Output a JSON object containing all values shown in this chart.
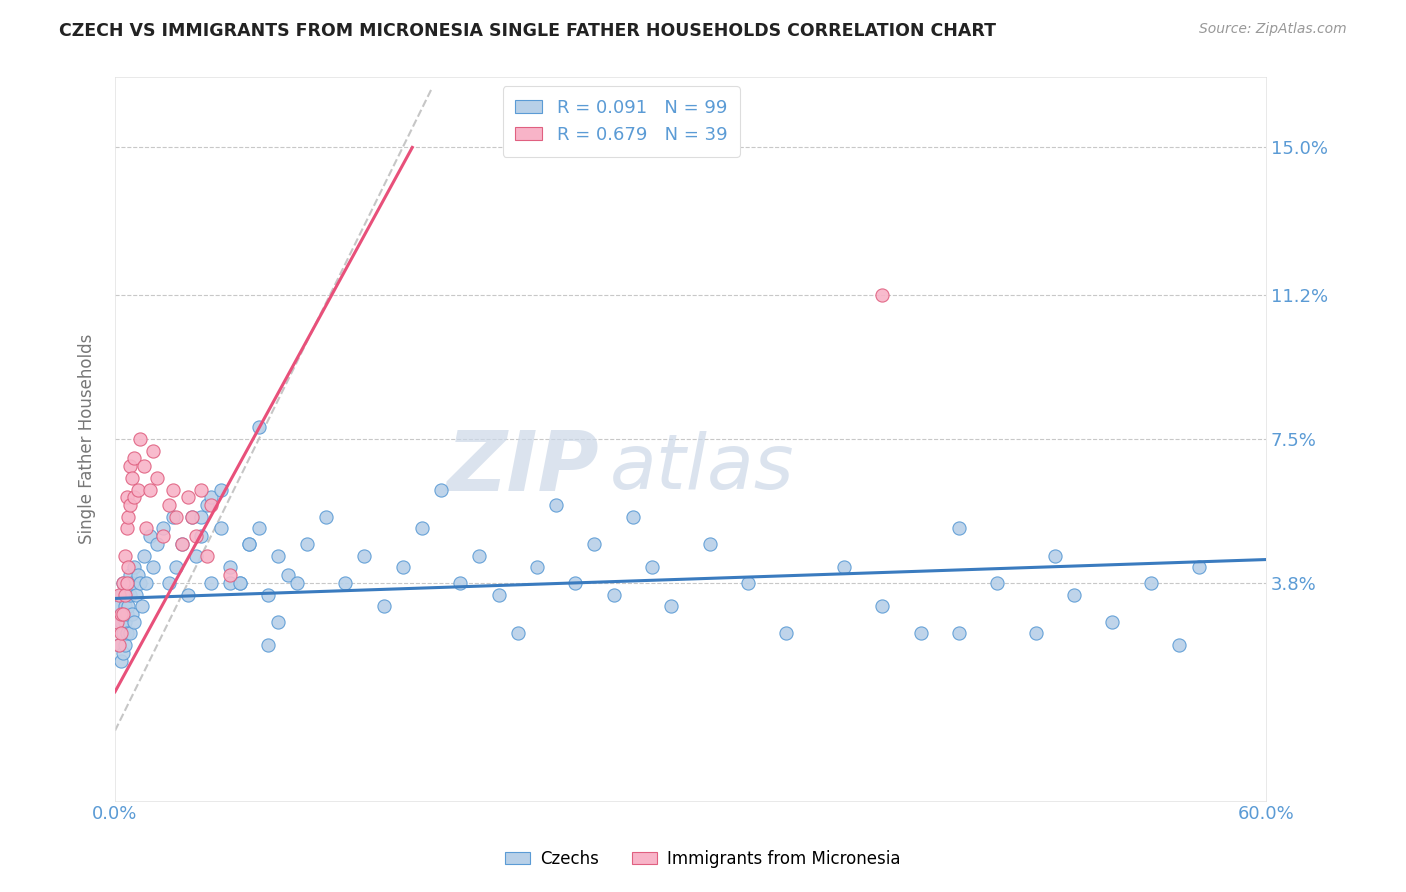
{
  "title": "CZECH VS IMMIGRANTS FROM MICRONESIA SINGLE FATHER HOUSEHOLDS CORRELATION CHART",
  "source_text": "Source: ZipAtlas.com",
  "ylabel": "Single Father Households",
  "ytick_labels": [
    "3.8%",
    "7.5%",
    "11.2%",
    "15.0%"
  ],
  "ytick_values": [
    0.038,
    0.075,
    0.112,
    0.15
  ],
  "xlim": [
    0.0,
    0.6
  ],
  "ylim": [
    -0.018,
    0.168
  ],
  "blue_R": 0.091,
  "blue_N": 99,
  "pink_R": 0.679,
  "pink_N": 39,
  "blue_color": "#b8d0e8",
  "pink_color": "#f8b4c8",
  "blue_edge_color": "#5b9bd5",
  "pink_edge_color": "#e06080",
  "blue_line_color": "#3a7bbf",
  "pink_line_color": "#e8507a",
  "ref_line_color": "#c0c0c0",
  "grid_color": "#c8c8c8",
  "label_color": "#5b9bd5",
  "title_color": "#222222",
  "source_color": "#999999",
  "watermark_color": "#ccd8e8",
  "legend_label1": "Czechs",
  "legend_label2": "Immigrants from Micronesia",
  "blue_x": [
    0.001,
    0.002,
    0.002,
    0.003,
    0.003,
    0.003,
    0.004,
    0.004,
    0.004,
    0.004,
    0.005,
    0.005,
    0.005,
    0.006,
    0.006,
    0.006,
    0.007,
    0.007,
    0.008,
    0.008,
    0.008,
    0.009,
    0.009,
    0.01,
    0.01,
    0.011,
    0.012,
    0.013,
    0.014,
    0.015,
    0.016,
    0.018,
    0.02,
    0.022,
    0.025,
    0.028,
    0.03,
    0.032,
    0.035,
    0.038,
    0.04,
    0.042,
    0.045,
    0.048,
    0.05,
    0.055,
    0.06,
    0.065,
    0.07,
    0.075,
    0.08,
    0.085,
    0.09,
    0.095,
    0.1,
    0.11,
    0.12,
    0.13,
    0.14,
    0.15,
    0.16,
    0.17,
    0.18,
    0.19,
    0.2,
    0.21,
    0.22,
    0.23,
    0.24,
    0.25,
    0.26,
    0.27,
    0.28,
    0.29,
    0.31,
    0.33,
    0.35,
    0.38,
    0.4,
    0.42,
    0.44,
    0.46,
    0.48,
    0.5,
    0.52,
    0.54,
    0.555,
    0.565,
    0.44,
    0.49,
    0.05,
    0.045,
    0.055,
    0.06,
    0.065,
    0.07,
    0.075,
    0.08,
    0.085
  ],
  "blue_y": [
    0.028,
    0.032,
    0.022,
    0.035,
    0.028,
    0.018,
    0.03,
    0.025,
    0.038,
    0.02,
    0.032,
    0.028,
    0.022,
    0.035,
    0.03,
    0.025,
    0.038,
    0.032,
    0.04,
    0.035,
    0.025,
    0.038,
    0.03,
    0.042,
    0.028,
    0.035,
    0.04,
    0.038,
    0.032,
    0.045,
    0.038,
    0.05,
    0.042,
    0.048,
    0.052,
    0.038,
    0.055,
    0.042,
    0.048,
    0.035,
    0.055,
    0.045,
    0.05,
    0.058,
    0.038,
    0.052,
    0.042,
    0.038,
    0.048,
    0.052,
    0.035,
    0.045,
    0.04,
    0.038,
    0.048,
    0.055,
    0.038,
    0.045,
    0.032,
    0.042,
    0.052,
    0.062,
    0.038,
    0.045,
    0.035,
    0.025,
    0.042,
    0.058,
    0.038,
    0.048,
    0.035,
    0.055,
    0.042,
    0.032,
    0.048,
    0.038,
    0.025,
    0.042,
    0.032,
    0.025,
    0.052,
    0.038,
    0.025,
    0.035,
    0.028,
    0.038,
    0.022,
    0.042,
    0.025,
    0.045,
    0.06,
    0.055,
    0.062,
    0.038,
    0.038,
    0.048,
    0.078,
    0.022,
    0.028
  ],
  "pink_x": [
    0.001,
    0.002,
    0.002,
    0.003,
    0.003,
    0.004,
    0.004,
    0.005,
    0.005,
    0.006,
    0.006,
    0.006,
    0.007,
    0.007,
    0.008,
    0.008,
    0.009,
    0.01,
    0.01,
    0.012,
    0.013,
    0.015,
    0.016,
    0.018,
    0.02,
    0.022,
    0.025,
    0.028,
    0.03,
    0.032,
    0.035,
    0.038,
    0.04,
    0.042,
    0.045,
    0.048,
    0.05,
    0.06,
    0.4
  ],
  "pink_y": [
    0.028,
    0.022,
    0.035,
    0.03,
    0.025,
    0.038,
    0.03,
    0.045,
    0.035,
    0.052,
    0.06,
    0.038,
    0.055,
    0.042,
    0.058,
    0.068,
    0.065,
    0.07,
    0.06,
    0.062,
    0.075,
    0.068,
    0.052,
    0.062,
    0.072,
    0.065,
    0.05,
    0.058,
    0.062,
    0.055,
    0.048,
    0.06,
    0.055,
    0.05,
    0.062,
    0.045,
    0.058,
    0.04,
    0.112
  ],
  "blue_trend_x": [
    0.0,
    0.6
  ],
  "blue_trend_y": [
    0.034,
    0.044
  ],
  "pink_trend_x": [
    0.0,
    0.155
  ],
  "pink_trend_y": [
    0.01,
    0.15
  ],
  "ref_line_x": [
    0.0,
    0.165
  ],
  "ref_line_y": [
    0.0,
    0.165
  ]
}
